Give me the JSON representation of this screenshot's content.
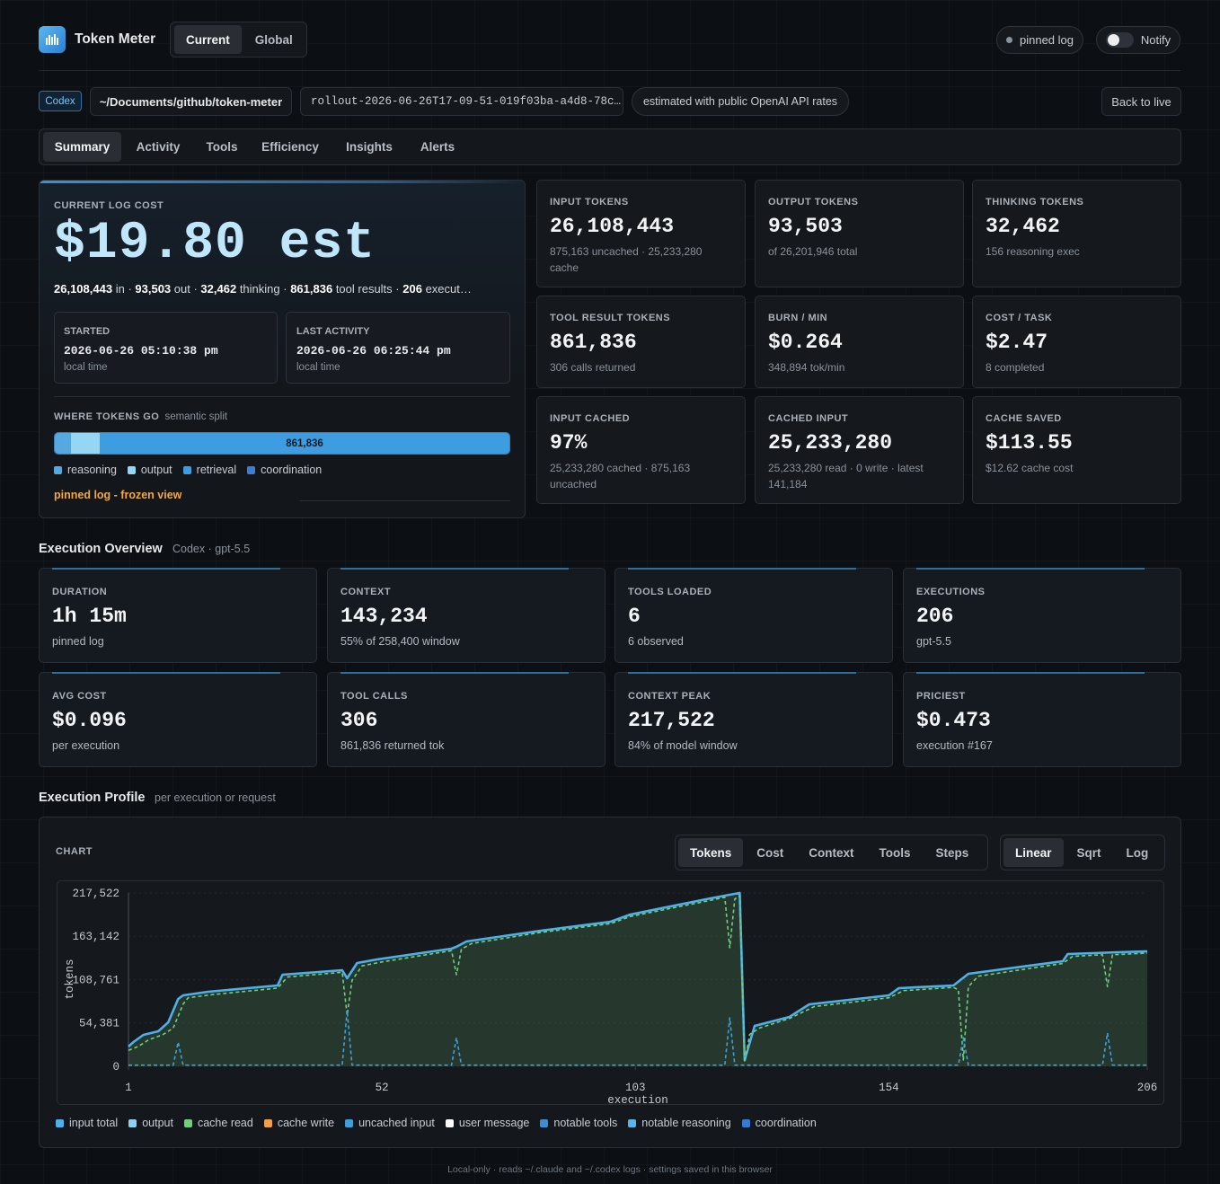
{
  "header": {
    "brand": "Token Meter",
    "scope": [
      "Current",
      "Global"
    ],
    "pinned": "pinned log",
    "notify": "Notify"
  },
  "context": {
    "source": "Codex",
    "path": "~/Documents/github/token-meter",
    "file": "rollout-2026-06-26T17-09-51-019f03ba-a4d8-78c…",
    "rates": "estimated with public OpenAI API rates",
    "back": "Back to live"
  },
  "tabs": [
    "Summary",
    "Activity",
    "Tools",
    "Efficiency",
    "Insights",
    "Alerts"
  ],
  "cost": {
    "label": "CURRENT LOG COST",
    "value": "$19.80 est",
    "breakdown": [
      {
        "value": "26,108,443",
        "unit": "in"
      },
      {
        "value": "93,503",
        "unit": "out"
      },
      {
        "value": "32,462",
        "unit": "thinking"
      },
      {
        "value": "861,836",
        "unit": "tool results"
      },
      {
        "value": "206",
        "unit": "execut…"
      }
    ],
    "started": {
      "label": "STARTED",
      "value": "2026-06-26 05:10:38 pm",
      "note": "local time"
    },
    "last": {
      "label": "LAST ACTIVITY",
      "value": "2026-06-26 06:25:44 pm",
      "note": "local time"
    },
    "where": {
      "label": "WHERE TOKENS GO",
      "note": "semantic split",
      "bar_label": "861,836",
      "legend": [
        "reasoning",
        "output",
        "retrieval",
        "coordination"
      ]
    },
    "pinned_note": "pinned log - frozen view"
  },
  "metrics": [
    {
      "label": "INPUT TOKENS",
      "value": "26,108,443",
      "note": "875,163 uncached · 25,233,280 cache"
    },
    {
      "label": "OUTPUT TOKENS",
      "value": "93,503",
      "note": "of 26,201,946 total"
    },
    {
      "label": "THINKING TOKENS",
      "value": "32,462",
      "note": "156 reasoning exec"
    },
    {
      "label": "TOOL RESULT TOKENS",
      "value": "861,836",
      "note": "306 calls returned"
    },
    {
      "label": "BURN / MIN",
      "value": "$0.264",
      "note": "348,894 tok/min"
    },
    {
      "label": "COST / TASK",
      "value": "$2.47",
      "note": "8 completed"
    },
    {
      "label": "INPUT CACHED",
      "value": "97%",
      "note": "25,233,280 cached · 875,163 uncached"
    },
    {
      "label": "CACHED INPUT",
      "value": "25,233,280",
      "note": "25,233,280 read · 0 write · latest 141,184"
    },
    {
      "label": "CACHE SAVED",
      "value": "$113.55",
      "note": "$12.62 cache cost"
    }
  ],
  "overview": {
    "title": "Execution Overview",
    "subtitle": "Codex · gpt-5.5",
    "cards": [
      {
        "label": "DURATION",
        "value": "1h 15m",
        "note": "pinned log"
      },
      {
        "label": "CONTEXT",
        "value": "143,234",
        "note": "55% of 258,400 window"
      },
      {
        "label": "TOOLS LOADED",
        "value": "6",
        "note": "6 observed"
      },
      {
        "label": "EXECUTIONS",
        "value": "206",
        "note": "gpt-5.5"
      },
      {
        "label": "AVG COST",
        "value": "$0.096",
        "note": "per execution"
      },
      {
        "label": "TOOL CALLS",
        "value": "306",
        "note": "861,836 returned tok"
      },
      {
        "label": "CONTEXT PEAK",
        "value": "217,522",
        "note": "84% of model window"
      },
      {
        "label": "PRICIEST",
        "value": "$0.473",
        "note": "execution #167"
      }
    ]
  },
  "profile": {
    "title": "Execution Profile",
    "subtitle": "per execution or request",
    "chart_label": "CHART",
    "modes": [
      "Tokens",
      "Cost",
      "Context",
      "Tools",
      "Steps"
    ],
    "scales": [
      "Linear",
      "Sqrt",
      "Log"
    ],
    "legend": [
      {
        "name": "input total",
        "color": "#4fb0e8"
      },
      {
        "name": "output",
        "color": "#8fd0f0"
      },
      {
        "name": "cache read",
        "color": "#6fcf7a"
      },
      {
        "name": "cache write",
        "color": "#f0a04b"
      },
      {
        "name": "uncached input",
        "color": "#3fa0d8"
      },
      {
        "name": "user message",
        "color": "#ffffff"
      },
      {
        "name": "notable tools",
        "color": "#3d8fd0"
      },
      {
        "name": "notable reasoning",
        "color": "#5ab4e8"
      },
      {
        "name": "coordination",
        "color": "#3a78d6"
      }
    ]
  },
  "chart_data": {
    "type": "line",
    "xlabel": "execution",
    "ylabel": "tokens",
    "xlim": [
      1,
      206
    ],
    "ylim": [
      0,
      217522
    ],
    "xticks": [
      1,
      52,
      103,
      154,
      206
    ],
    "yticks": [
      0,
      {
        "value": 54381,
        "label": "54,381"
      },
      {
        "value": 108761,
        "label": "108,761"
      },
      {
        "value": 163142,
        "label": "163,142"
      },
      {
        "value": 217522,
        "label": "217,522"
      }
    ],
    "series": [
      {
        "name": "input total",
        "color": "#4fb0e8",
        "area": true,
        "dash": false,
        "x": [
          1,
          2,
          4,
          7,
          9,
          11,
          12,
          17,
          31,
          32,
          44,
          45,
          47,
          51,
          66,
          67,
          69,
          84,
          98,
          102,
          118,
          122,
          124,
          125,
          127,
          134,
          138,
          154,
          156,
          167,
          170,
          189,
          190,
          200,
          206
        ],
        "values": [
          24800,
          30400,
          39400,
          44000,
          55200,
          84500,
          89000,
          93500,
          101400,
          115000,
          120600,
          110400,
          129600,
          134100,
          147600,
          150000,
          156700,
          170200,
          181500,
          190500,
          210700,
          215300,
          217522,
          7900,
          50700,
          62000,
          77800,
          89000,
          98000,
          101400,
          116100,
          131900,
          140900,
          143100,
          144300
        ]
      },
      {
        "name": "cache read",
        "color": "#6fcf7a",
        "area": false,
        "dash": true,
        "x": [
          1,
          3,
          5,
          8,
          10,
          12,
          13,
          18,
          31,
          33,
          44,
          45,
          46,
          48,
          52,
          66,
          67,
          68,
          70,
          84,
          98,
          102,
          118,
          121,
          122,
          123,
          124,
          125,
          126,
          128,
          134,
          139,
          154,
          157,
          167,
          168,
          169,
          170,
          172,
          189,
          191,
          197,
          198,
          199,
          206
        ],
        "values": [
          20000,
          25000,
          33000,
          40000,
          48000,
          78000,
          86000,
          90000,
          98000,
          112000,
          118000,
          64000,
          108000,
          126000,
          131000,
          145000,
          115000,
          147000,
          154000,
          168000,
          179000,
          188000,
          208000,
          212000,
          148800,
          210000,
          214000,
          5000,
          40000,
          48000,
          60000,
          75000,
          86000,
          95000,
          99000,
          96000,
          7900,
          100000,
          113000,
          129000,
          138000,
          140000,
          100000,
          140000,
          142000
        ]
      },
      {
        "name": "uncached input",
        "color": "#3fa0d8",
        "area": false,
        "dash": true,
        "x": [
          1,
          10,
          11,
          12,
          44,
          45,
          46,
          66,
          67,
          68,
          121,
          122,
          123,
          168,
          169,
          170,
          197,
          198,
          199,
          206
        ],
        "values": [
          1500,
          1500,
          30400,
          1500,
          1500,
          69900,
          1500,
          1500,
          36000,
          1500,
          1500,
          60900,
          1500,
          1500,
          36000,
          1500,
          1500,
          41700,
          1500,
          1500
        ]
      }
    ]
  },
  "footer": "Local-only · reads ~/.claude and ~/.codex logs · settings saved in this browser"
}
